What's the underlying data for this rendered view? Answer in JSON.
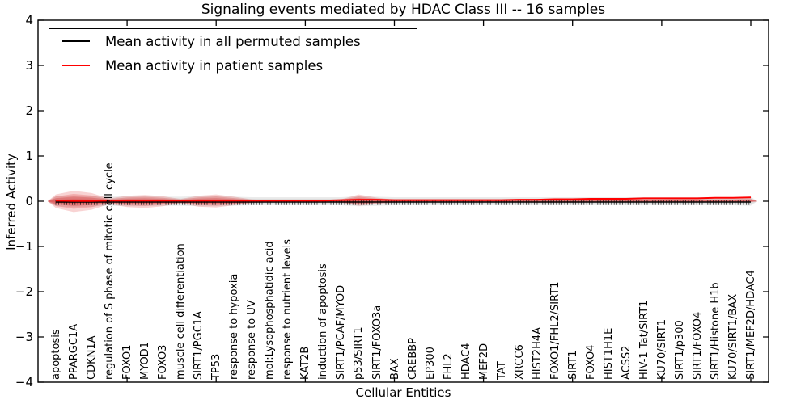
{
  "chart_data": {
    "type": "line",
    "title": "Signaling events mediated by HDAC Class III -- 16 samples",
    "xlabel": "Cellular Entities",
    "ylabel": "Inferred Activity",
    "ylim": [
      -4,
      4
    ],
    "xlim": [
      0,
      41
    ],
    "yticks": [
      4,
      3,
      2,
      1,
      0,
      -1,
      -2,
      -3,
      -4
    ],
    "xticks_major": [
      5,
      10,
      15,
      20,
      25,
      30,
      35,
      40
    ],
    "grid": false,
    "legend_position": "upper left",
    "categories": [
      "apoptosis",
      "PPARGC1A",
      "CDKN1A",
      "regulation of S phase of mitotic cell cycle",
      "FOXO1",
      "MYOD1",
      "FOXO3",
      "muscle cell differentiation",
      "SIRT1/PGC1A",
      "TP53",
      "response to hypoxia",
      "response to UV",
      "mol:Lysophosphatidic acid",
      "response to nutrient levels",
      "KAT2B",
      "induction of apoptosis",
      "SIRT1/PCAF/MYOD",
      "p53/SIRT1",
      "SIRT1/FOXO3a",
      "BAX",
      "CREBBP",
      "EP300",
      "FHL2",
      "HDAC4",
      "MEF2D",
      "TAT",
      "XRCC6",
      "HIST2H4A",
      "FOXO1/FHL2/SIRT1",
      "SIRT1",
      "FOXO4",
      "HIST1H1E",
      "ACSS2",
      "HIV-1 Tat/SIRT1",
      "KU70/SIRT1",
      "SIRT1/p300",
      "SIRT1/FOXO4",
      "SIRT1/Histone H1b",
      "KU70/SIRT1/BAX",
      "SIRT1/MEF2D/HDAC4"
    ],
    "series": [
      {
        "name": "Mean activity in all permuted samples",
        "color": "#000000",
        "values": [
          0,
          0,
          0,
          0,
          0,
          0,
          0,
          0,
          0,
          0,
          0,
          0,
          0,
          0,
          0,
          0,
          0,
          0,
          0,
          0,
          0,
          0,
          0,
          0,
          0,
          0,
          0,
          0,
          0,
          0,
          0,
          0,
          0,
          0,
          0,
          0,
          0,
          0,
          0,
          0
        ]
      },
      {
        "name": "Mean activity in patient samples",
        "color": "#ff0000",
        "values": [
          0.0,
          -0.01,
          -0.01,
          0.0,
          0.0,
          0.0,
          0.0,
          0.0,
          0.0,
          0.0,
          0.0,
          0.0,
          0.0,
          0.0,
          0.0,
          0.0,
          0.01,
          0.02,
          0.02,
          0.01,
          0.01,
          0.01,
          0.01,
          0.01,
          0.01,
          0.01,
          0.02,
          0.02,
          0.03,
          0.03,
          0.04,
          0.04,
          0.04,
          0.05,
          0.05,
          0.05,
          0.05,
          0.06,
          0.06,
          0.07
        ]
      }
    ],
    "bands": [
      {
        "name": "permuted-sample-distribution",
        "color": "#999999",
        "half_up": [
          0.11,
          0.13,
          0.12,
          0.1,
          0.11,
          0.11,
          0.1,
          0.1,
          0.11,
          0.11,
          0.1,
          0.09,
          0.09,
          0.09,
          0.09,
          0.09,
          0.09,
          0.11,
          0.1,
          0.09,
          0.09,
          0.09,
          0.09,
          0.09,
          0.09,
          0.09,
          0.09,
          0.09,
          0.09,
          0.09,
          0.09,
          0.09,
          0.09,
          0.09,
          0.09,
          0.09,
          0.09,
          0.09,
          0.09,
          0.1
        ],
        "half_down": [
          0.11,
          0.13,
          0.12,
          0.1,
          0.11,
          0.11,
          0.1,
          0.1,
          0.11,
          0.11,
          0.1,
          0.09,
          0.09,
          0.09,
          0.09,
          0.09,
          0.09,
          0.11,
          0.1,
          0.09,
          0.09,
          0.09,
          0.09,
          0.09,
          0.09,
          0.09,
          0.09,
          0.09,
          0.09,
          0.09,
          0.09,
          0.09,
          0.09,
          0.09,
          0.09,
          0.09,
          0.09,
          0.09,
          0.09,
          0.1
        ]
      },
      {
        "name": "patient-sample-distribution",
        "color": "#e03535",
        "half_up": [
          0.15,
          0.23,
          0.18,
          0.06,
          0.12,
          0.14,
          0.11,
          0.05,
          0.12,
          0.15,
          0.1,
          0.04,
          0.02,
          0.02,
          0.02,
          0.02,
          0.04,
          0.15,
          0.08,
          0.03,
          0.02,
          0.02,
          0.02,
          0.02,
          0.02,
          0.02,
          0.03,
          0.05,
          0.06,
          0.05,
          0.04,
          0.04,
          0.04,
          0.04,
          0.04,
          0.05,
          0.05,
          0.05,
          0.05,
          0.06
        ],
        "half_down": [
          0.15,
          0.24,
          0.19,
          0.06,
          0.13,
          0.15,
          0.11,
          0.05,
          0.12,
          0.14,
          0.09,
          0.04,
          0.02,
          0.02,
          0.02,
          0.02,
          0.03,
          0.1,
          0.06,
          0.03,
          0.02,
          0.02,
          0.02,
          0.02,
          0.02,
          0.02,
          0.02,
          0.03,
          0.03,
          0.03,
          0.02,
          0.02,
          0.02,
          0.02,
          0.02,
          0.02,
          0.02,
          0.02,
          0.02,
          0.02
        ]
      }
    ]
  },
  "legend": {
    "items": [
      {
        "label": "Mean activity in all permuted samples",
        "color": "#000000"
      },
      {
        "label": "Mean activity in patient samples",
        "color": "#ff0000"
      }
    ]
  }
}
